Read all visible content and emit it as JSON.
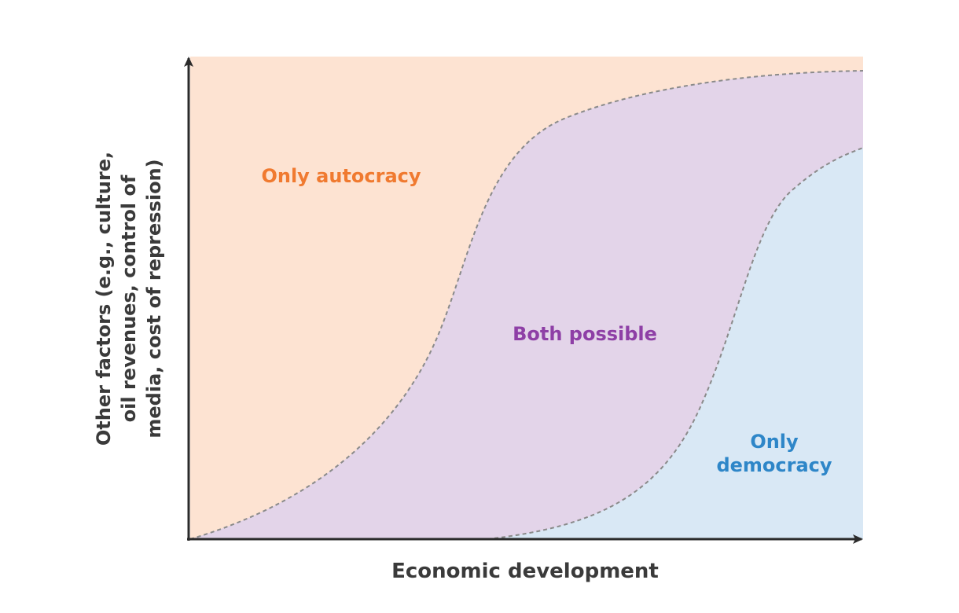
{
  "colors": {
    "autocracy_fill": "#fde3d2",
    "both_fill": "#e3d4e9",
    "democracy_fill": "#d9e8f5",
    "autocracy_text": "#f07a30",
    "both_text": "#8e3fa6",
    "democracy_text": "#2e86c8",
    "axis": "#2b2b2b",
    "boundary": "#8a8a8a"
  },
  "regions": {
    "autocracy": {
      "label": "Only autocracy"
    },
    "both": {
      "label": "Both possible"
    },
    "democracy": {
      "label_line1": "Only",
      "label_line2": "democracy"
    }
  },
  "axes": {
    "x_label": "Economic development",
    "y_label_line1": "Other factors (e.g., culture,",
    "y_label_line2": "oil revenues, control of",
    "y_label_line3": "media, cost of repression)"
  }
}
